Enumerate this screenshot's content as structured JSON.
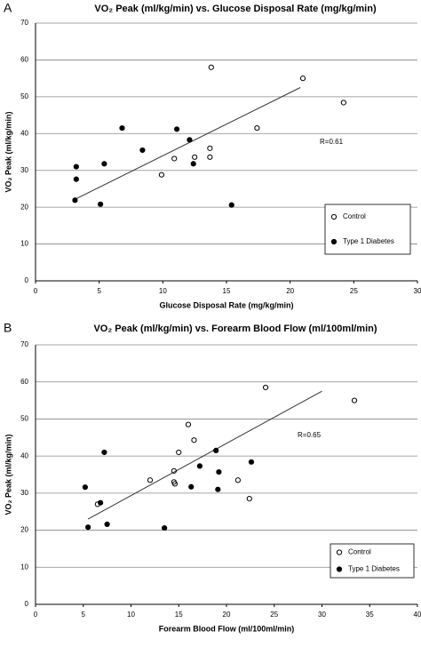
{
  "chart_data": [
    {
      "type": "scatter",
      "panel_label": "A",
      "title": "VO₂ Peak (ml/kg/min) vs. Glucose Disposal Rate (mg/kg/min)",
      "x_label": "Glucose Disposal Rate (mg/kg/min)",
      "y_label": "VO₂ Peak (ml/kg/min)",
      "xlim": [
        0,
        30
      ],
      "xticks": [
        0,
        5,
        10,
        15,
        20,
        25,
        30
      ],
      "ylim": [
        0,
        70
      ],
      "yticks": [
        0,
        10,
        20,
        30,
        40,
        50,
        60,
        70
      ],
      "grid": true,
      "legend": "lower right",
      "annotation": "R=0.61",
      "series": [
        {
          "name": "Control",
          "color": "#000000",
          "fill": "none",
          "x": [
            13.8,
            21,
            24.2,
            17.4,
            13.7,
            10.9,
            12.5,
            13.7,
            9.9
          ],
          "values": [
            58,
            55,
            48.4,
            41.5,
            36,
            33.2,
            33.6,
            33.6,
            28.8
          ]
        },
        {
          "name": "Type 1 Diabetes",
          "color": "#000000",
          "fill": "#000000",
          "x": [
            3.2,
            3.2,
            3.1,
            5.4,
            5.1,
            6.8,
            8.4,
            11.1,
            12.1,
            12.4,
            15.4
          ],
          "values": [
            31,
            27.6,
            21.9,
            31.8,
            20.8,
            41.5,
            35.5,
            41.2,
            38.3,
            31.8,
            20.6
          ]
        }
      ],
      "trend_line": {
        "color": "#333333",
        "x": [
          3.2,
          20.8
        ],
        "values": [
          22.3,
          52.5
        ]
      }
    },
    {
      "type": "scatter",
      "panel_label": "B",
      "title": "VO₂ Peak (ml/kg/min) vs. Forearm Blood Flow (ml/100ml/min)",
      "x_label": "Forearm Blood Flow (ml/100ml/min)",
      "y_label": "VO₂ Peak (ml/kg/min)",
      "xlim": [
        0,
        40
      ],
      "xticks": [
        0,
        5,
        10,
        15,
        20,
        25,
        30,
        35,
        40
      ],
      "ylim": [
        0,
        70
      ],
      "yticks": [
        0,
        10,
        20,
        30,
        40,
        50,
        60,
        70
      ],
      "grid": true,
      "legend": "lower right",
      "annotation": "R=0.65",
      "series": [
        {
          "name": "Control",
          "color": "#000000",
          "fill": "none",
          "x": [
            6.5,
            12,
            14.5,
            14.5,
            14.6,
            15,
            16,
            16.6,
            21.2,
            22.4,
            24.1,
            33.4
          ],
          "values": [
            27,
            33.5,
            36,
            33,
            32.5,
            41,
            48.5,
            44.3,
            33.5,
            28.5,
            58.5,
            55
          ]
        },
        {
          "name": "Type 1 Diabetes",
          "color": "#000000",
          "fill": "#000000",
          "x": [
            5.2,
            5.5,
            6.8,
            7.2,
            7.5,
            13.5,
            17.2,
            16.3,
            18.9,
            19.1,
            19.2,
            22.6
          ],
          "values": [
            31.6,
            20.8,
            27.4,
            41,
            21.6,
            20.6,
            37.3,
            31.7,
            41.5,
            31,
            35.7,
            38.4
          ]
        }
      ],
      "trend_line": {
        "color": "#333333",
        "x": [
          5.5,
          30
        ],
        "values": [
          23,
          57.5
        ]
      }
    }
  ]
}
